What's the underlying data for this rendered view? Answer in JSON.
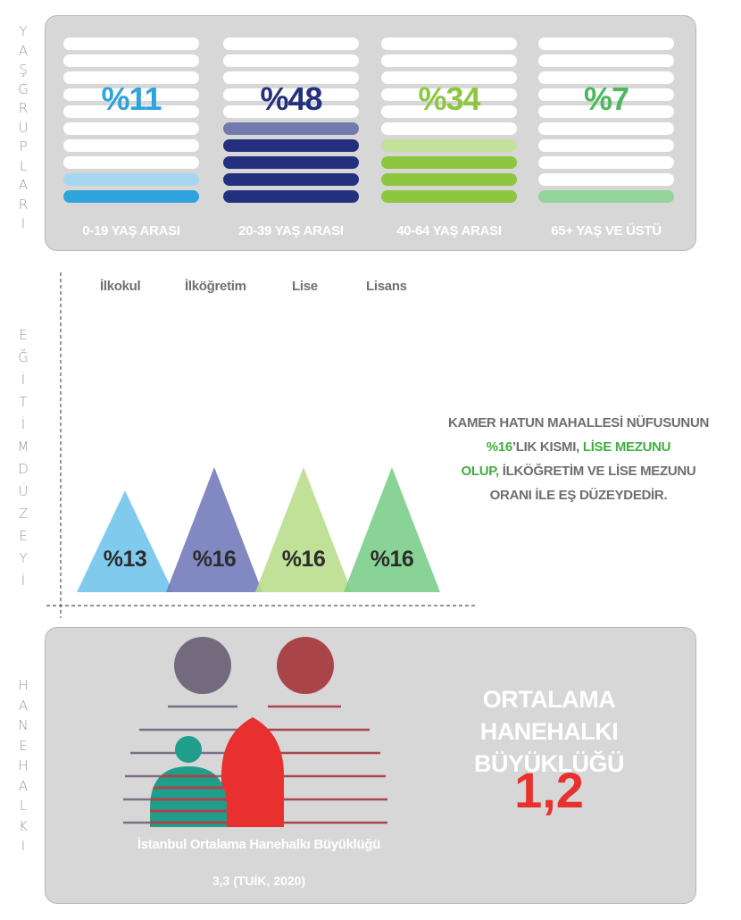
{
  "side_labels": {
    "age": "YAŞ GRUPLARI",
    "education": "EĞİTİM DÜZEYİ",
    "household": "HANEHALKI"
  },
  "age_groups": {
    "colors": [
      "#2ea3dc",
      "#24307d",
      "#8dc63f",
      "#4cb85c"
    ],
    "items": [
      {
        "label": "0-19 YAŞ ARASI",
        "percent_label": "%11",
        "value": 11
      },
      {
        "label": "20-39 YAŞ ARASI",
        "percent_label": "%48",
        "value": 48
      },
      {
        "label": "40-64 YAŞ ARASI",
        "percent_label": "%34",
        "value": 34
      },
      {
        "label": "65+ YAŞ VE ÜSTÜ",
        "percent_label": "%7",
        "value": 7
      }
    ]
  },
  "chart_data": {
    "type": "bar",
    "categories": [
      "İlkokul",
      "İlköğretim",
      "Lise",
      "Lisans"
    ],
    "values": [
      13,
      16,
      16,
      16
    ],
    "value_labels": [
      "%13",
      "%16",
      "%16",
      "%16"
    ],
    "colors": [
      "#6ec4ea",
      "#6f78b9",
      "#b8dc8a",
      "#79cd87"
    ],
    "ylim": [
      0,
      16
    ]
  },
  "education_note": {
    "line1": "KAMER HATUN MAHALLESİ NÜFUSUNUN",
    "line2_highlight": "%16",
    "line2_rest": "’LIK KISMI, ",
    "line2_highlight2": "LİSE MEZUNU",
    "line3_highlight": "OLUP,",
    "line3_rest": " İLKÖĞRETİM VE LİSE MEZUNU",
    "line4": "ORANI İLE EŞ DÜZEYDEDİR."
  },
  "household": {
    "title_line1": "ORTALAMA HANEHALKI",
    "title_line2": "BÜYÜKLÜĞÜ",
    "value": "1,2",
    "istanbul_label": "İstanbul Ortalama Hanehalkı Büyüklüğü",
    "istanbul_value": "3,3 (TUİK, 2020)"
  }
}
